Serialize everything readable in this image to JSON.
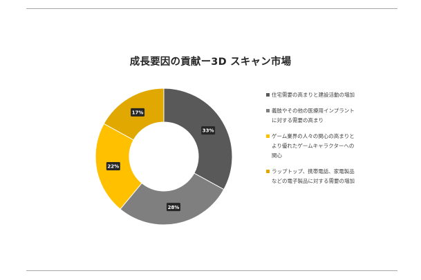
{
  "title": "成長要因の貢献ー3D スキャン市場",
  "chart_data": {
    "type": "pie",
    "style": "donut",
    "legend_position": "right",
    "slices": [
      {
        "label": "住宅需要の高まりと建設活動の増加",
        "value": 33,
        "display": "33%",
        "color": "#595959"
      },
      {
        "label": "義肢やその他の医療用インプラントに対する需要の高まり",
        "value": 28,
        "display": "28%",
        "color": "#7f7f7f"
      },
      {
        "label": "ゲーム業界の人々の関心の高まりとより優れたゲームキャラクターへの関心",
        "value": 22,
        "display": "22%",
        "color": "#ffc000"
      },
      {
        "label": "ラップトップ、携帯電話、家電製品などの電子製品に対する需要の増加",
        "value": 17,
        "display": "17%",
        "color": "#e0a800"
      }
    ]
  }
}
